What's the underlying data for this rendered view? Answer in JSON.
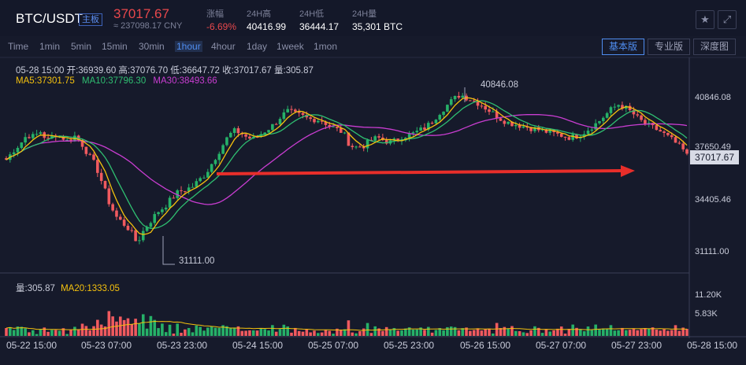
{
  "header": {
    "pair": "BTC/USDT",
    "badge": "主板",
    "price": "37017.67",
    "price_cny": "≈ 237098.17 CNY",
    "stats": [
      {
        "label": "涨幅",
        "value": "-6.69%"
      },
      {
        "label": "24H高",
        "value": "40416.99"
      },
      {
        "label": "24H低",
        "value": "36444.17"
      },
      {
        "label": "24H量",
        "value": "35,301 BTC"
      }
    ],
    "icons": [
      "star-icon",
      "fullscreen-icon"
    ]
  },
  "timeframes": [
    "Time",
    "1min",
    "5min",
    "15min",
    "30min",
    "1hour",
    "4hour",
    "1day",
    "1week",
    "1mon"
  ],
  "active_timeframe": "1hour",
  "views": [
    "基本版",
    "专业版",
    "深度图"
  ],
  "active_view": "基本版",
  "ohlc_text": "05-28 15:00   开:36939.60  高:37076.70  低:36647.72  收:37017.67  量:305.87",
  "ma": {
    "ma5": "MA5:37301.75",
    "ma10": "MA10:37796.30",
    "ma30": "MA30:38493.66"
  },
  "volume_info": {
    "vol": "量:305.87",
    "ma20": "MA20:1333.05"
  },
  "annotations": {
    "high": "40846.08",
    "low": "31111.00"
  },
  "current_price_label": "37017.67",
  "colors": {
    "up": "#26b168",
    "down": "#f05a5f",
    "ma5": "#f4c10e",
    "ma10": "#2fbf71",
    "ma30": "#c93dd1",
    "arrow": "#e82e2a",
    "accent": "#4f8df0"
  },
  "chart_data": {
    "type": "candlestick",
    "y_axis_labels": [
      "40846.08",
      "37650.49",
      "34405.46",
      "31111.00"
    ],
    "volume_axis_labels": [
      "11.20K",
      "5.83K"
    ],
    "x_labels": [
      "05-22 15:00",
      "05-23 07:00",
      "05-23 23:00",
      "05-24 15:00",
      "05-25 07:00",
      "05-25 23:00",
      "05-26 15:00",
      "05-27 07:00",
      "05-27 23:00",
      "05-28 15:00"
    ],
    "ylim": [
      29900,
      42600
    ],
    "close_path": [
      36650,
      37200,
      37600,
      38150,
      38050,
      38350,
      37800,
      38200,
      38050,
      37750,
      38100,
      37600,
      36900,
      36300,
      35200,
      34000,
      33200,
      32800,
      32400,
      31600,
      32400,
      32950,
      33500,
      33800,
      34300,
      34700,
      34850,
      35000,
      35400,
      35800,
      36500,
      37200,
      37900,
      38400,
      38300,
      38000,
      37900,
      38200,
      38500,
      38800,
      39300,
      39600,
      39400,
      39300,
      39100,
      39100,
      39000,
      38700,
      38500,
      38300,
      37500,
      37400,
      37500,
      37800,
      38000,
      37800,
      37700,
      37900,
      38100,
      38200,
      38400,
      38600,
      39000,
      39500,
      39900,
      40300,
      40600,
      40400,
      40200,
      40000,
      39700,
      39400,
      39100,
      38900,
      38800,
      38700,
      38600,
      38500,
      38400,
      38300,
      38200,
      38100,
      38000,
      38100,
      38300,
      38600,
      38900,
      39300,
      39700,
      40000,
      39800,
      39500,
      39100,
      38800,
      38600,
      38400,
      38100,
      37800,
      37400,
      37017
    ],
    "volume_ma20": 1333.05,
    "vol_max": 12000,
    "marked_high": 40846.08,
    "marked_low": 31111.0
  }
}
